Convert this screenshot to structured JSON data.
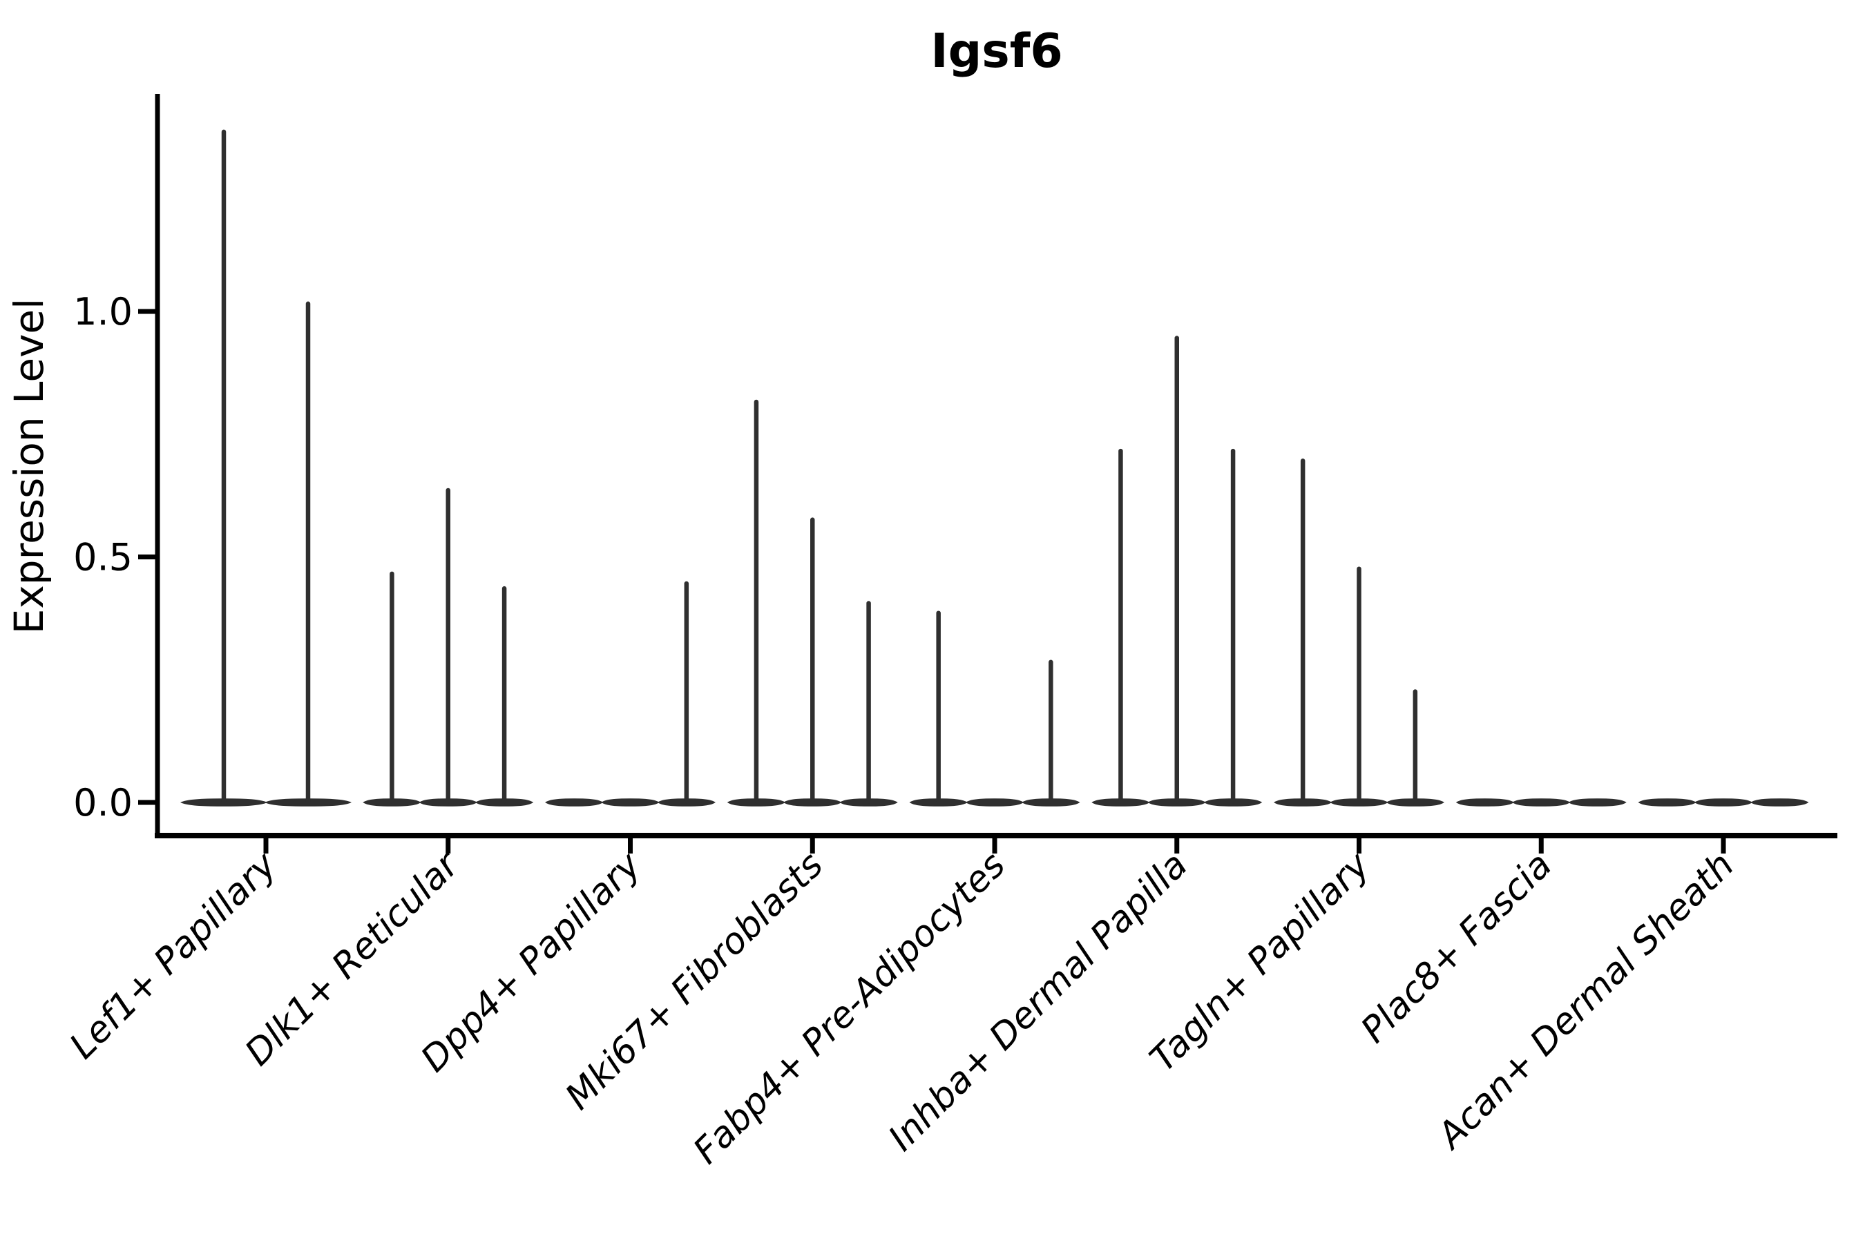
{
  "figure": {
    "background": "#ffffff"
  },
  "chart_data": {
    "type": "violin",
    "title": "Igsf6",
    "ylabel": "Expression Level",
    "xlabel": "",
    "ylim": [
      -0.07,
      1.44
    ],
    "yticks": [
      {
        "value": 0.0,
        "label": "0.0"
      },
      {
        "value": 0.5,
        "label": "0.5"
      },
      {
        "value": 1.0,
        "label": "1.0"
      }
    ],
    "grid": false,
    "legend": "none",
    "style": {
      "violin_color": "#2f2f2f",
      "axis_color": "#000000",
      "title_bold": true,
      "xtick_labels_italic": true,
      "xtick_label_rotation_deg": 45
    },
    "categories": [
      "Lef1+ Papillary",
      "Dlk1+ Reticular",
      "Dpp4+ Papillary",
      "Mki67+ Fibroblasts",
      "Fabp4+ Pre-Adipocytes",
      "Inhba+ Dermal Papilla",
      "Tagln+ Papillary",
      "Plac8+ Fascia",
      "Acan+ Dermal Sheath"
    ],
    "groups": [
      {
        "category": "Lef1+ Papillary",
        "violin_maxima": [
          1.37,
          1.02
        ]
      },
      {
        "category": "Dlk1+ Reticular",
        "violin_maxima": [
          0.47,
          0.64,
          0.44
        ]
      },
      {
        "category": "Dpp4+ Papillary",
        "violin_maxima": [
          0,
          0,
          0.45
        ]
      },
      {
        "category": "Mki67+ Fibroblasts",
        "violin_maxima": [
          0.82,
          0.58,
          0.41
        ]
      },
      {
        "category": "Fabp4+ Pre-Adipocytes",
        "violin_maxima": [
          0.39,
          0,
          0.29
        ]
      },
      {
        "category": "Inhba+ Dermal Papilla",
        "violin_maxima": [
          0.72,
          0.95,
          0.72
        ]
      },
      {
        "category": "Tagln+ Papillary",
        "violin_maxima": [
          0.7,
          0.48,
          0.23
        ]
      },
      {
        "category": "Plac8+ Fascia",
        "violin_maxima": [
          0,
          0,
          0
        ]
      },
      {
        "category": "Acan+ Dermal Sheath",
        "violin_maxima": [
          0,
          0,
          0
        ]
      }
    ]
  }
}
